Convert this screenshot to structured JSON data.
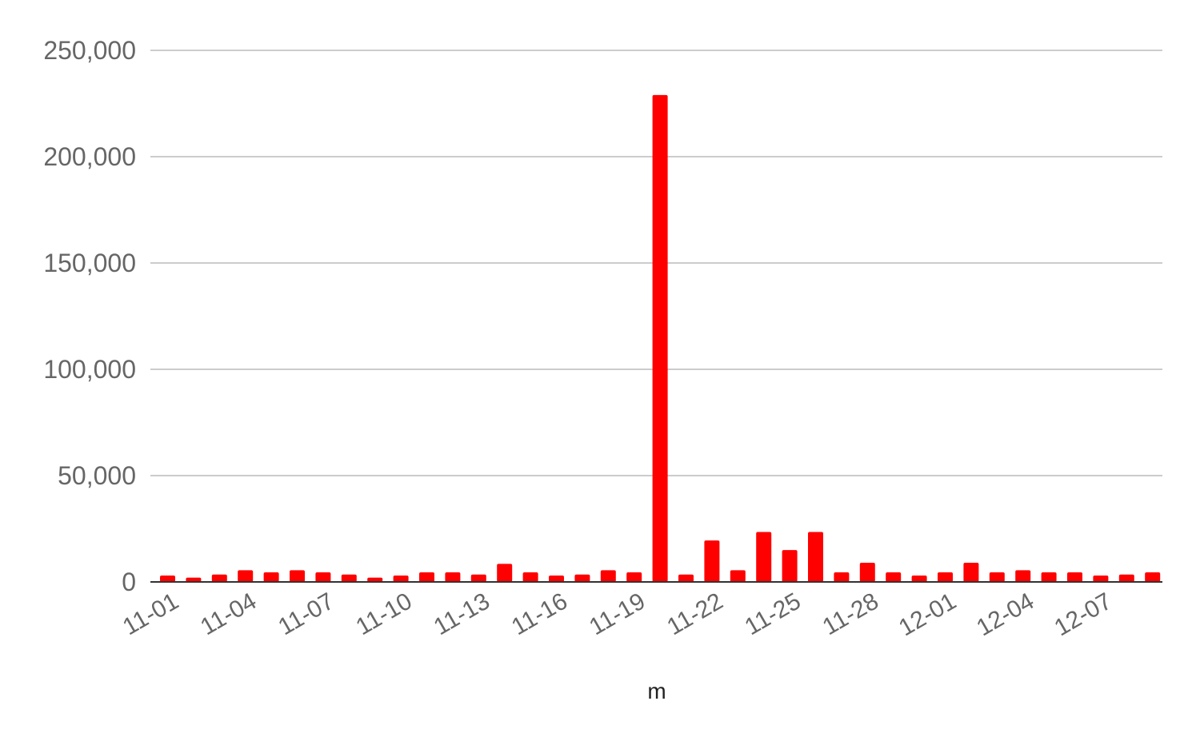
{
  "chart_data": {
    "type": "bar",
    "categories": [
      "11-01",
      "11-02",
      "11-03",
      "11-04",
      "11-05",
      "11-06",
      "11-07",
      "11-08",
      "11-09",
      "11-10",
      "11-11",
      "11-12",
      "11-13",
      "11-14",
      "11-15",
      "11-16",
      "11-17",
      "11-18",
      "11-19",
      "11-20",
      "11-21",
      "11-22",
      "11-23",
      "11-24",
      "11-25",
      "11-26",
      "11-27",
      "11-28",
      "11-29",
      "11-30",
      "12-01",
      "12-02",
      "12-03",
      "12-04",
      "12-05",
      "12-06",
      "12-07",
      "12-08",
      "12-09"
    ],
    "tick_labels": [
      "11-01",
      "11-04",
      "11-07",
      "11-10",
      "11-13",
      "11-16",
      "11-19",
      "11-22",
      "11-25",
      "11-28",
      "12-01",
      "12-04",
      "12-07"
    ],
    "values": [
      3000,
      2000,
      3500,
      5500,
      4500,
      5500,
      4500,
      3500,
      2000,
      3000,
      4500,
      4500,
      3500,
      8500,
      4500,
      3000,
      3500,
      5500,
      4500,
      229000,
      3500,
      19500,
      5500,
      23500,
      15000,
      23500,
      4500,
      9000,
      4500,
      3000,
      4500,
      9000,
      4500,
      5500,
      4500,
      4500,
      3000,
      3500,
      4500
    ],
    "series_color": "#ff0000",
    "title": "",
    "xlabel": "m",
    "ylabel": "",
    "ylim": [
      0,
      250000
    ],
    "yticks": [
      0,
      50000,
      100000,
      150000,
      200000,
      250000
    ],
    "ytick_labels": [
      "0",
      "50,000",
      "100,000",
      "150,000",
      "200,000",
      "250,000"
    ],
    "grid": true,
    "legend": "none"
  }
}
